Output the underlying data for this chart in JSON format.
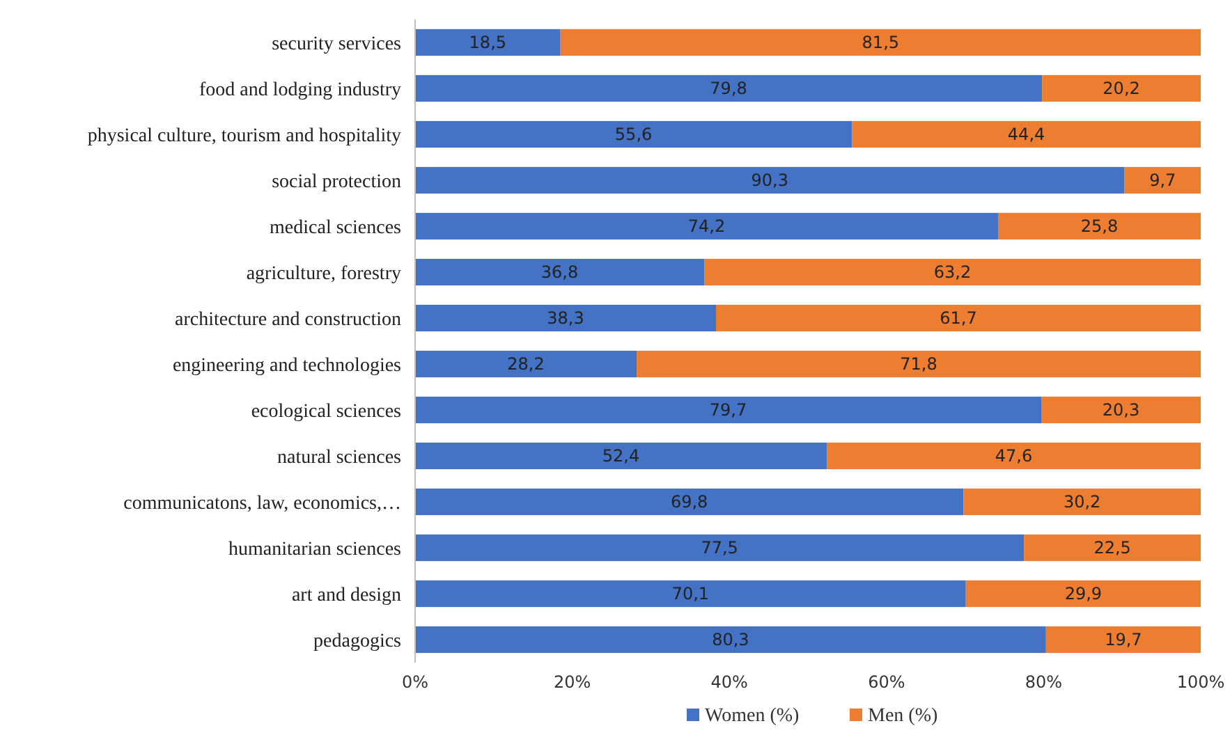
{
  "chart_data": {
    "type": "bar",
    "orientation": "horizontal",
    "stacked": true,
    "categories": [
      "security services",
      "food and lodging industry",
      "physical culture, tourism and hospitality",
      "social protection",
      "medical sciences",
      "agriculture, forestry",
      "architecture and construction",
      "engineering and technologies",
      "ecological sciences",
      "natural sciences",
      "communicatons, law, economics,…",
      "humanitarian sciences",
      "art and design",
      "pedagogics"
    ],
    "series": [
      {
        "name": "Women (%)",
        "color": "#4472c4",
        "values": [
          18.5,
          79.8,
          55.6,
          90.3,
          74.2,
          36.8,
          38.3,
          28.2,
          79.7,
          52.4,
          69.8,
          77.5,
          70.1,
          80.3
        ],
        "value_labels": [
          "18,5",
          "79,8",
          "55,6",
          "90,3",
          "74,2",
          "36,8",
          "38,3",
          "28,2",
          "79,7",
          "52,4",
          "69,8",
          "77,5",
          "70,1",
          "80,3"
        ]
      },
      {
        "name": "Men (%)",
        "color": "#ed7d31",
        "values": [
          81.5,
          20.2,
          44.4,
          9.7,
          25.8,
          63.2,
          61.7,
          71.8,
          20.3,
          47.6,
          30.2,
          22.5,
          29.9,
          19.7
        ],
        "value_labels": [
          "81,5",
          "20,2",
          "44,4",
          "9,7",
          "25,8",
          "63,2",
          "61,7",
          "71,8",
          "20,3",
          "47,6",
          "30,2",
          "22,5",
          "29,9",
          "19,7"
        ]
      }
    ],
    "xlim": [
      0,
      100
    ],
    "xticks": [
      {
        "value": 0,
        "label": "0%"
      },
      {
        "value": 20,
        "label": "20%"
      },
      {
        "value": 40,
        "label": "40%"
      },
      {
        "value": 60,
        "label": "60%"
      },
      {
        "value": 80,
        "label": "80%"
      },
      {
        "value": 100,
        "label": "100%"
      }
    ],
    "legend": "bottom",
    "grid": false
  }
}
